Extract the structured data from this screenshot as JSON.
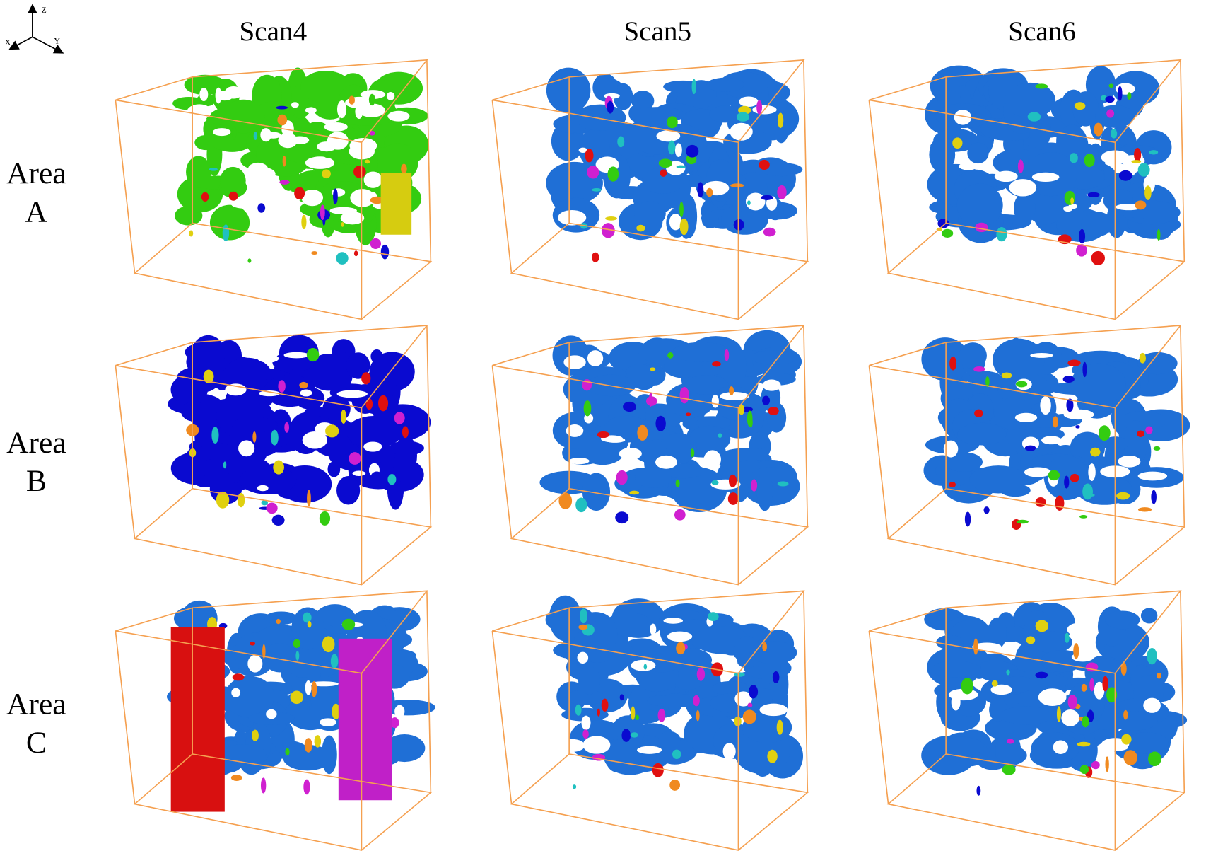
{
  "axes": {
    "z": "Z",
    "x": "X",
    "y": "Y"
  },
  "columns": [
    "Scan4",
    "Scan5",
    "Scan6"
  ],
  "rows": [
    [
      "Area",
      "A"
    ],
    [
      "Area",
      "B"
    ],
    [
      "Area",
      "C"
    ]
  ]
}
